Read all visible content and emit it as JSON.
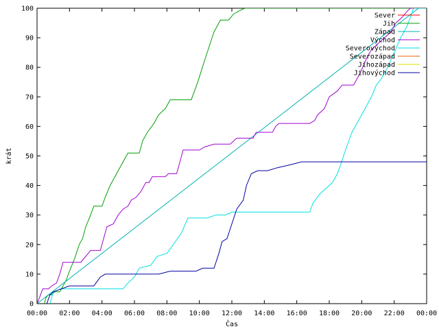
{
  "chart_data": {
    "type": "line",
    "xlabel": "Čas",
    "ylabel": "krát",
    "xlim": [
      0,
      24
    ],
    "ylim": [
      0,
      100
    ],
    "x_ticks": [
      {
        "value": 0,
        "label": "00:00"
      },
      {
        "value": 2,
        "label": "02:00"
      },
      {
        "value": 4,
        "label": "04:00"
      },
      {
        "value": 6,
        "label": "06:00"
      },
      {
        "value": 8,
        "label": "08:00"
      },
      {
        "value": 10,
        "label": "10:00"
      },
      {
        "value": 12,
        "label": "12:00"
      },
      {
        "value": 14,
        "label": "14:00"
      },
      {
        "value": 16,
        "label": "16:00"
      },
      {
        "value": 18,
        "label": "18:00"
      },
      {
        "value": 20,
        "label": "20:00"
      },
      {
        "value": 22,
        "label": "22:00"
      },
      {
        "value": 24,
        "label": "00:00"
      }
    ],
    "y_ticks": [
      {
        "value": 0,
        "label": "0"
      },
      {
        "value": 10,
        "label": "10"
      },
      {
        "value": 20,
        "label": "20"
      },
      {
        "value": 30,
        "label": "30"
      },
      {
        "value": 40,
        "label": "40"
      },
      {
        "value": 50,
        "label": "50"
      },
      {
        "value": 60,
        "label": "60"
      },
      {
        "value": 70,
        "label": "70"
      },
      {
        "value": 80,
        "label": "80"
      },
      {
        "value": 90,
        "label": "90"
      },
      {
        "value": 100,
        "label": "100"
      }
    ],
    "grid": false,
    "legend_position": "top-right",
    "series": [
      {
        "name": "Sever",
        "color": "#ff0000",
        "points": [
          [
            23.0,
            100
          ],
          [
            24,
            100
          ]
        ]
      },
      {
        "name": "Jih",
        "color": "#00a000",
        "points": [
          [
            0.45,
            0
          ],
          [
            0.55,
            2
          ],
          [
            0.7,
            3
          ],
          [
            0.9,
            3
          ],
          [
            1.1,
            4
          ],
          [
            1.4,
            4
          ],
          [
            1.6,
            6
          ],
          [
            1.8,
            8
          ],
          [
            2.0,
            11
          ],
          [
            2.3,
            15
          ],
          [
            2.6,
            20
          ],
          [
            2.8,
            22
          ],
          [
            3.0,
            26
          ],
          [
            3.3,
            30
          ],
          [
            3.5,
            33
          ],
          [
            4.0,
            33
          ],
          [
            4.2,
            36
          ],
          [
            4.5,
            40
          ],
          [
            4.8,
            43
          ],
          [
            5.0,
            45
          ],
          [
            5.2,
            47
          ],
          [
            5.4,
            49
          ],
          [
            5.6,
            51
          ],
          [
            6.3,
            51
          ],
          [
            6.5,
            55
          ],
          [
            6.8,
            58
          ],
          [
            7.2,
            61
          ],
          [
            7.5,
            64
          ],
          [
            7.9,
            66
          ],
          [
            8.2,
            69
          ],
          [
            9.5,
            69
          ],
          [
            9.9,
            75
          ],
          [
            10.3,
            82
          ],
          [
            10.6,
            87
          ],
          [
            10.9,
            92
          ],
          [
            11.3,
            96
          ],
          [
            11.8,
            96
          ],
          [
            12.1,
            98
          ],
          [
            12.4,
            99
          ],
          [
            12.8,
            100
          ],
          [
            24,
            100
          ]
        ]
      },
      {
        "name": "Západ",
        "color": "#00b0b0",
        "points": [
          [
            0,
            0
          ],
          [
            23.5,
            100
          ],
          [
            24,
            100
          ]
        ]
      },
      {
        "name": "Východ",
        "color": "#a000d0",
        "points": [
          [
            0,
            0
          ],
          [
            0.15,
            2
          ],
          [
            0.35,
            5
          ],
          [
            0.7,
            5
          ],
          [
            0.9,
            6
          ],
          [
            1.2,
            7
          ],
          [
            1.4,
            10
          ],
          [
            1.6,
            14
          ],
          [
            2.7,
            14
          ],
          [
            3.0,
            16
          ],
          [
            3.3,
            18
          ],
          [
            3.9,
            18
          ],
          [
            4.1,
            22
          ],
          [
            4.3,
            26
          ],
          [
            4.7,
            27
          ],
          [
            5.0,
            30
          ],
          [
            5.3,
            32
          ],
          [
            5.6,
            33
          ],
          [
            5.8,
            35
          ],
          [
            6.1,
            36
          ],
          [
            6.4,
            38
          ],
          [
            6.7,
            41
          ],
          [
            6.9,
            41
          ],
          [
            7.1,
            43
          ],
          [
            7.9,
            43
          ],
          [
            8.1,
            44
          ],
          [
            8.6,
            44
          ],
          [
            8.8,
            48
          ],
          [
            9.0,
            52
          ],
          [
            10.0,
            52
          ],
          [
            10.3,
            53
          ],
          [
            10.9,
            54
          ],
          [
            11.9,
            54
          ],
          [
            12.3,
            56
          ],
          [
            13.3,
            56
          ],
          [
            13.5,
            58
          ],
          [
            14.5,
            58
          ],
          [
            14.7,
            60
          ],
          [
            14.9,
            61
          ],
          [
            16.8,
            61
          ],
          [
            17.1,
            62
          ],
          [
            17.3,
            64
          ],
          [
            17.7,
            66
          ],
          [
            18.0,
            70
          ],
          [
            18.5,
            72
          ],
          [
            18.8,
            74
          ],
          [
            19.5,
            74
          ],
          [
            19.9,
            78
          ],
          [
            20.3,
            83
          ],
          [
            20.6,
            86
          ],
          [
            21.0,
            88
          ],
          [
            21.4,
            90
          ],
          [
            21.8,
            92
          ],
          [
            22.1,
            95
          ],
          [
            22.5,
            97
          ],
          [
            22.8,
            99
          ],
          [
            23.0,
            100
          ],
          [
            24,
            100
          ]
        ]
      },
      {
        "name": "Severovýchod",
        "color": "#00e0e0",
        "points": [
          [
            0.8,
            0
          ],
          [
            1.0,
            4
          ],
          [
            1.5,
            5
          ],
          [
            5.3,
            5
          ],
          [
            5.6,
            7
          ],
          [
            6.0,
            9
          ],
          [
            6.3,
            12
          ],
          [
            7.0,
            13
          ],
          [
            7.4,
            16
          ],
          [
            8.0,
            17
          ],
          [
            8.4,
            20
          ],
          [
            8.9,
            24
          ],
          [
            9.3,
            29
          ],
          [
            10.5,
            29
          ],
          [
            11.0,
            30
          ],
          [
            11.6,
            30
          ],
          [
            12.0,
            31
          ],
          [
            16.8,
            31
          ],
          [
            17.0,
            34
          ],
          [
            17.4,
            37
          ],
          [
            17.8,
            39
          ],
          [
            18.2,
            41
          ],
          [
            18.5,
            44
          ],
          [
            18.7,
            47
          ],
          [
            19.0,
            52
          ],
          [
            19.4,
            58
          ],
          [
            19.7,
            61
          ],
          [
            20.0,
            64
          ],
          [
            20.3,
            67
          ],
          [
            20.6,
            70
          ],
          [
            20.9,
            74
          ],
          [
            21.2,
            76
          ],
          [
            21.6,
            80
          ],
          [
            22.0,
            85
          ],
          [
            22.4,
            90
          ],
          [
            22.8,
            94
          ],
          [
            23.2,
            100
          ],
          [
            24,
            100
          ]
        ]
      },
      {
        "name": "Severozápad",
        "color": "#e06000",
        "points": []
      },
      {
        "name": "Jihozápad",
        "color": "#e0e000",
        "points": []
      },
      {
        "name": "Jihovýchod",
        "color": "#0000a0",
        "points": [
          [
            0.6,
            0
          ],
          [
            0.8,
            3
          ],
          [
            1.0,
            4
          ],
          [
            1.5,
            5
          ],
          [
            2.0,
            6
          ],
          [
            3.5,
            6
          ],
          [
            3.9,
            9
          ],
          [
            4.2,
            10
          ],
          [
            6.5,
            10
          ],
          [
            7.5,
            10
          ],
          [
            8.2,
            11
          ],
          [
            9.8,
            11
          ],
          [
            10.2,
            12
          ],
          [
            10.9,
            12
          ],
          [
            11.2,
            17
          ],
          [
            11.4,
            21
          ],
          [
            11.7,
            22
          ],
          [
            12.0,
            27
          ],
          [
            12.3,
            32
          ],
          [
            12.7,
            35
          ],
          [
            12.9,
            40
          ],
          [
            13.2,
            44
          ],
          [
            13.6,
            45
          ],
          [
            14.2,
            45
          ],
          [
            14.8,
            46
          ],
          [
            15.6,
            47
          ],
          [
            16.3,
            48
          ],
          [
            24,
            48
          ]
        ]
      }
    ]
  }
}
